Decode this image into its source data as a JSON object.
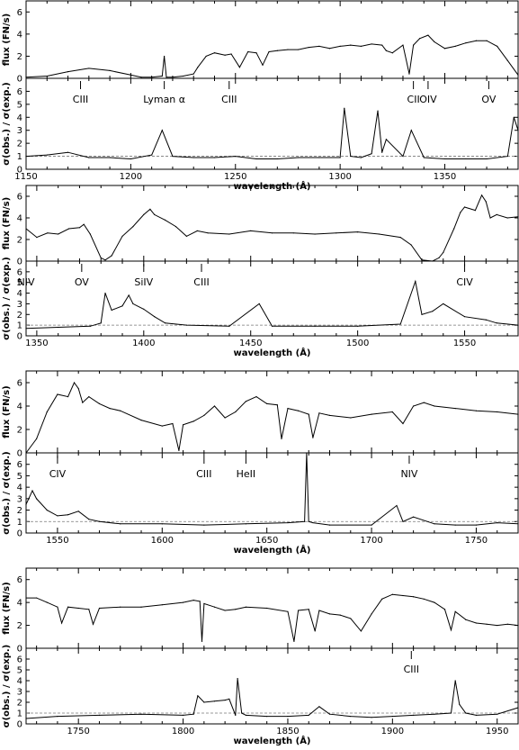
{
  "chart_data": [
    {
      "type": "line",
      "panel": "flux",
      "ylabel": "flux (FN/s)",
      "xlim": [
        1150,
        1385
      ],
      "ylim": [
        0,
        7
      ],
      "yticks": [
        0,
        2,
        4,
        6
      ],
      "series": [
        {
          "x": [
            1150,
            1160,
            1170,
            1180,
            1190,
            1200,
            1205,
            1210,
            1215,
            1216,
            1217,
            1220,
            1225,
            1230,
            1232,
            1236,
            1240,
            1245,
            1248,
            1252,
            1256,
            1260,
            1263,
            1266,
            1270,
            1275,
            1280,
            1285,
            1290,
            1295,
            1300,
            1305,
            1310,
            1315,
            1320,
            1322,
            1325,
            1330,
            1333,
            1335,
            1338,
            1342,
            1345,
            1350,
            1355,
            1360,
            1365,
            1370,
            1375,
            1380,
            1385
          ],
          "y": [
            0.1,
            0.2,
            0.6,
            0.9,
            0.7,
            0.3,
            0.1,
            0.1,
            0.2,
            2.0,
            0.1,
            0.1,
            0.2,
            0.4,
            1.0,
            2.0,
            2.3,
            2.1,
            2.2,
            1.0,
            2.4,
            2.3,
            1.2,
            2.4,
            2.5,
            2.6,
            2.6,
            2.8,
            2.9,
            2.7,
            2.9,
            3.0,
            2.9,
            3.1,
            3.0,
            2.5,
            2.3,
            3.0,
            0.4,
            3.0,
            3.6,
            3.9,
            3.3,
            2.7,
            2.9,
            3.2,
            3.4,
            3.4,
            2.9,
            1.6,
            0.3
          ]
        }
      ],
      "line_ids": [
        {
          "label": "CIII",
          "x": 1176
        },
        {
          "label": "Lyman α",
          "x": 1216
        },
        {
          "label": "CIII",
          "x": 1247
        },
        {
          "label": "CII",
          "x": 1335
        },
        {
          "label": "OIV",
          "x": 1342
        },
        {
          "label": "OV",
          "x": 1371
        }
      ]
    },
    {
      "type": "line",
      "panel": "sigma",
      "ylabel": "σ(obs.) / σ(exp.)",
      "xlabel": "wavelength (Å)",
      "xlim": [
        1150,
        1385
      ],
      "ylim": [
        0,
        7
      ],
      "xticks": [
        1150,
        1200,
        1250,
        1300,
        1350
      ],
      "yticks": [
        0,
        1,
        2,
        3,
        4,
        5,
        6
      ],
      "series": [
        {
          "x": [
            1150,
            1160,
            1170,
            1180,
            1190,
            1200,
            1210,
            1215,
            1220,
            1230,
            1240,
            1250,
            1260,
            1270,
            1280,
            1290,
            1300,
            1302,
            1305,
            1310,
            1315,
            1318,
            1320,
            1322,
            1330,
            1334,
            1340,
            1350,
            1360,
            1370,
            1380,
            1383,
            1385
          ],
          "y": [
            1.0,
            1.1,
            1.3,
            0.9,
            0.9,
            0.8,
            1.1,
            3.0,
            1.0,
            0.9,
            0.9,
            1.0,
            0.8,
            0.8,
            0.9,
            0.9,
            0.9,
            4.7,
            1.0,
            0.9,
            1.2,
            4.5,
            1.3,
            2.3,
            1.0,
            3.0,
            0.9,
            0.8,
            0.8,
            0.8,
            1.0,
            4.0,
            3.0
          ]
        }
      ]
    },
    {
      "type": "line",
      "panel": "flux",
      "ylabel": "flux (FN/s)",
      "xlim": [
        1345,
        1575
      ],
      "ylim": [
        0,
        7
      ],
      "yticks": [
        0,
        2,
        4,
        6
      ],
      "series": [
        {
          "x": [
            1345,
            1350,
            1355,
            1360,
            1365,
            1370,
            1372,
            1375,
            1380,
            1382,
            1385,
            1390,
            1395,
            1400,
            1403,
            1405,
            1410,
            1415,
            1420,
            1425,
            1430,
            1440,
            1450,
            1460,
            1470,
            1480,
            1490,
            1500,
            1510,
            1520,
            1525,
            1530,
            1535,
            1538,
            1540,
            1545,
            1548,
            1550,
            1555,
            1558,
            1560,
            1562,
            1565,
            1570,
            1575
          ],
          "y": [
            3.0,
            2.2,
            2.6,
            2.5,
            3.0,
            3.1,
            3.4,
            2.5,
            0.3,
            0.1,
            0.5,
            2.3,
            3.2,
            4.3,
            4.8,
            4.3,
            3.8,
            3.2,
            2.3,
            2.8,
            2.6,
            2.5,
            2.8,
            2.6,
            2.6,
            2.5,
            2.6,
            2.7,
            2.5,
            2.2,
            1.5,
            0.1,
            0.0,
            0.3,
            0.8,
            3.0,
            4.5,
            5.0,
            4.7,
            6.1,
            5.5,
            4.0,
            4.3,
            4.0,
            4.1
          ]
        }
      ],
      "line_ids": [
        {
          "label": "NIV",
          "x": 1345
        },
        {
          "label": "OV",
          "x": 1371
        },
        {
          "label": "SiIV",
          "x": 1400
        },
        {
          "label": "CIII",
          "x": 1427
        },
        {
          "label": "CIV",
          "x": 1550
        }
      ]
    },
    {
      "type": "line",
      "panel": "sigma",
      "ylabel": "σ(obs.) / σ(exp.)",
      "xlabel": "wavelength (Å)",
      "xlim": [
        1345,
        1575
      ],
      "ylim": [
        0,
        7
      ],
      "xticks": [
        1350,
        1400,
        1450,
        1500,
        1550
      ],
      "yticks": [
        0,
        1,
        2,
        3,
        4,
        5,
        6
      ],
      "series": [
        {
          "x": [
            1345,
            1360,
            1375,
            1380,
            1382,
            1385,
            1390,
            1393,
            1395,
            1400,
            1405,
            1410,
            1420,
            1440,
            1454,
            1460,
            1480,
            1500,
            1520,
            1527,
            1530,
            1535,
            1540,
            1550,
            1560,
            1565,
            1575
          ],
          "y": [
            0.7,
            0.8,
            0.9,
            1.2,
            4.0,
            2.4,
            2.8,
            3.8,
            3.0,
            2.5,
            1.8,
            1.2,
            1.0,
            0.9,
            3.0,
            0.9,
            0.9,
            0.9,
            1.1,
            5.1,
            2.0,
            2.3,
            3.0,
            1.8,
            1.5,
            1.2,
            1.0
          ]
        }
      ]
    },
    {
      "type": "line",
      "panel": "flux",
      "ylabel": "flux (FN/s)",
      "xlim": [
        1535,
        1770
      ],
      "ylim": [
        0,
        7
      ],
      "yticks": [
        0,
        2,
        4,
        6
      ],
      "series": [
        {
          "x": [
            1535,
            1540,
            1545,
            1550,
            1555,
            1558,
            1560,
            1562,
            1565,
            1570,
            1575,
            1580,
            1590,
            1600,
            1605,
            1608,
            1610,
            1615,
            1620,
            1625,
            1630,
            1635,
            1640,
            1645,
            1650,
            1655,
            1657,
            1660,
            1665,
            1670,
            1672,
            1675,
            1680,
            1690,
            1700,
            1710,
            1715,
            1720,
            1725,
            1730,
            1740,
            1750,
            1760,
            1770
          ],
          "y": [
            0.0,
            1.2,
            3.5,
            5.0,
            4.8,
            6.0,
            5.5,
            4.3,
            4.8,
            4.2,
            3.8,
            3.6,
            2.8,
            2.3,
            2.5,
            0.2,
            2.4,
            2.7,
            3.2,
            4.0,
            3.0,
            3.5,
            4.4,
            4.8,
            4.2,
            4.1,
            1.2,
            3.8,
            3.6,
            3.3,
            1.3,
            3.4,
            3.2,
            3.0,
            3.3,
            3.5,
            2.5,
            4.0,
            4.3,
            4.0,
            3.8,
            3.6,
            3.5,
            3.3
          ]
        }
      ],
      "line_ids": [
        {
          "label": "CIV",
          "x": 1550
        },
        {
          "label": "CIII",
          "x": 1620
        },
        {
          "label": "HeII",
          "x": 1640
        },
        {
          "label": "NIV",
          "x": 1718
        }
      ]
    },
    {
      "type": "line",
      "panel": "sigma",
      "ylabel": "σ(obs.) / σ(exp.)",
      "xlabel": "wavelength (Å)",
      "xlim": [
        1535,
        1770
      ],
      "ylim": [
        0,
        7
      ],
      "xticks": [
        1550,
        1600,
        1650,
        1700,
        1750
      ],
      "yticks": [
        0,
        1,
        2,
        3,
        4,
        5,
        6
      ],
      "series": [
        {
          "x": [
            1535,
            1538,
            1540,
            1545,
            1550,
            1555,
            1560,
            1565,
            1570,
            1580,
            1600,
            1620,
            1640,
            1660,
            1668,
            1669,
            1670,
            1672,
            1680,
            1700,
            1712,
            1715,
            1720,
            1730,
            1740,
            1750,
            1760,
            1770
          ],
          "y": [
            2.5,
            3.7,
            3.0,
            2.0,
            1.5,
            1.6,
            1.9,
            1.2,
            1.0,
            0.8,
            0.8,
            0.7,
            0.8,
            0.9,
            1.0,
            7.0,
            1.0,
            0.9,
            0.7,
            0.7,
            2.4,
            1.0,
            1.4,
            0.8,
            0.7,
            0.7,
            0.9,
            0.8
          ]
        }
      ]
    },
    {
      "type": "line",
      "panel": "flux",
      "ylabel": "flux (FN/s)",
      "xlim": [
        1725,
        1960
      ],
      "ylim": [
        0,
        7
      ],
      "yticks": [
        0,
        2,
        4,
        6
      ],
      "series": [
        {
          "x": [
            1725,
            1730,
            1735,
            1740,
            1742,
            1745,
            1750,
            1755,
            1757,
            1760,
            1770,
            1780,
            1790,
            1800,
            1805,
            1808,
            1809,
            1810,
            1815,
            1820,
            1825,
            1830,
            1840,
            1850,
            1853,
            1855,
            1860,
            1863,
            1865,
            1870,
            1875,
            1880,
            1885,
            1890,
            1895,
            1900,
            1905,
            1910,
            1915,
            1920,
            1925,
            1928,
            1930,
            1935,
            1940,
            1945,
            1950,
            1955,
            1960
          ],
          "y": [
            4.4,
            4.4,
            4.0,
            3.6,
            2.2,
            3.6,
            3.5,
            3.4,
            2.1,
            3.5,
            3.6,
            3.6,
            3.8,
            4.0,
            4.2,
            4.1,
            0.6,
            3.9,
            3.6,
            3.3,
            3.4,
            3.6,
            3.5,
            3.2,
            0.6,
            3.3,
            3.4,
            1.5,
            3.3,
            3.0,
            2.9,
            2.6,
            1.5,
            3.0,
            4.3,
            4.7,
            4.6,
            4.5,
            4.3,
            4.0,
            3.4,
            1.6,
            3.2,
            2.5,
            2.2,
            2.1,
            2.0,
            2.1,
            2.0
          ]
        }
      ],
      "line_ids": [
        {
          "label": "CIII",
          "x": 1909
        }
      ]
    },
    {
      "type": "line",
      "panel": "sigma",
      "ylabel": "σ(obs.) / σ(exp.)",
      "xlabel": "wavelength (Å)",
      "xlim": [
        1725,
        1960
      ],
      "ylim": [
        0,
        7
      ],
      "xticks": [
        1750,
        1800,
        1850,
        1900,
        1950
      ],
      "yticks": [
        0,
        1,
        2,
        3,
        4,
        5,
        6
      ],
      "series": [
        {
          "x": [
            1725,
            1740,
            1760,
            1780,
            1800,
            1805,
            1807,
            1810,
            1815,
            1820,
            1822,
            1825,
            1826,
            1828,
            1830,
            1840,
            1850,
            1860,
            1865,
            1870,
            1880,
            1890,
            1900,
            1910,
            1920,
            1928,
            1930,
            1932,
            1935,
            1940,
            1950,
            1960
          ],
          "y": [
            0.5,
            0.7,
            0.8,
            0.9,
            0.8,
            0.9,
            2.6,
            2.0,
            2.1,
            2.2,
            2.3,
            0.8,
            4.2,
            1.0,
            0.8,
            0.7,
            0.7,
            0.8,
            1.6,
            0.9,
            0.7,
            0.6,
            0.7,
            0.8,
            0.9,
            1.0,
            4.0,
            1.8,
            1.0,
            0.8,
            0.9,
            1.5
          ]
        }
      ]
    }
  ]
}
